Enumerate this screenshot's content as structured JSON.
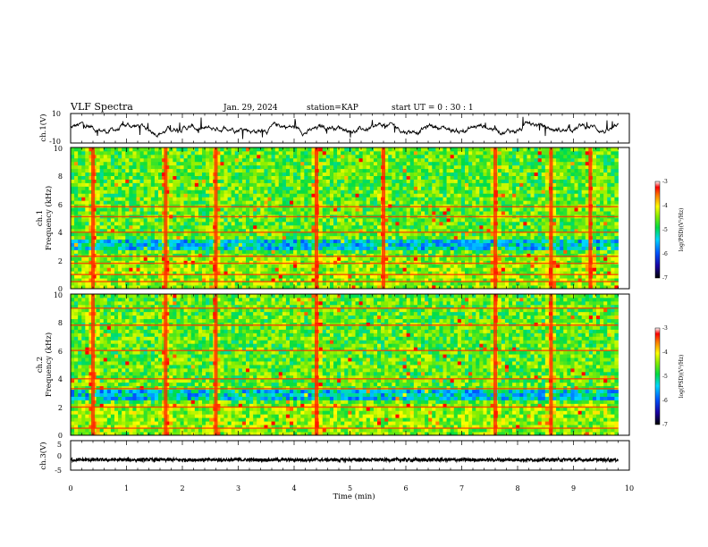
{
  "header": {
    "title": "VLF Spectra",
    "date": "Jan. 29, 2024",
    "station": "station=KAP",
    "start": "start UT =  0 : 30 : 1"
  },
  "chart_data": [
    {
      "type": "line",
      "id": "ch1-waveform",
      "ylabel": "ch.1(V)",
      "ylim": [
        -10,
        10
      ],
      "yticks": [
        "10",
        "-10"
      ],
      "xlim": [
        0,
        10
      ],
      "end_time": 9.8
    },
    {
      "type": "heatmap",
      "id": "ch1-spectrogram",
      "ylabel": "ch.1",
      "ylabel2": "Frequency (kHz)",
      "ylim": [
        0,
        10
      ],
      "yticks": [
        "0",
        "2",
        "4",
        "6",
        "8",
        "10"
      ],
      "xlim": [
        0,
        10
      ],
      "end_time": 9.8,
      "colorbar": {
        "range": [
          -7,
          -3
        ],
        "ticks": [
          "-3",
          "-4",
          "-5",
          "-6",
          "-7"
        ],
        "label": "log(PSD)(V²/Hz)"
      },
      "strong_bursts_min": [
        0.4,
        1.7,
        2.6,
        4.4,
        5.6,
        7.6,
        8.6,
        9.3
      ],
      "emission_lines_khz": [
        0.5,
        1.0,
        1.8,
        2.3,
        4.0,
        5.1,
        5.8
      ]
    },
    {
      "type": "heatmap",
      "id": "ch2-spectrogram",
      "ylabel": "ch.2",
      "ylabel2": "Frequency (kHz)",
      "ylim": [
        0,
        10
      ],
      "yticks": [
        "0",
        "2",
        "4",
        "6",
        "8",
        "10"
      ],
      "xlim": [
        0,
        10
      ],
      "end_time": 9.8,
      "colorbar": {
        "range": [
          -7,
          -3
        ],
        "ticks": [
          "-3",
          "-4",
          "-5",
          "-6",
          "-7"
        ],
        "label": "log(PSD)(V²/Hz)"
      },
      "strong_bursts_min": [
        0.4,
        1.7,
        2.6,
        4.4,
        7.6,
        8.6
      ],
      "emission_lines_khz": [
        0.5,
        2.0,
        3.3,
        4.0,
        6.0,
        7.8,
        9.0
      ]
    },
    {
      "type": "line",
      "id": "ch3-waveform",
      "ylabel": "ch.3(V)",
      "ylim": [
        -5,
        5
      ],
      "yticks": [
        "5",
        "0",
        "-5"
      ],
      "xlim": [
        0,
        10
      ],
      "end_time": 9.8,
      "level": -1.5,
      "xlabel": "Time (min)",
      "xticks": [
        "0",
        "1",
        "2",
        "3",
        "4",
        "5",
        "6",
        "7",
        "8",
        "9",
        "10"
      ]
    }
  ]
}
